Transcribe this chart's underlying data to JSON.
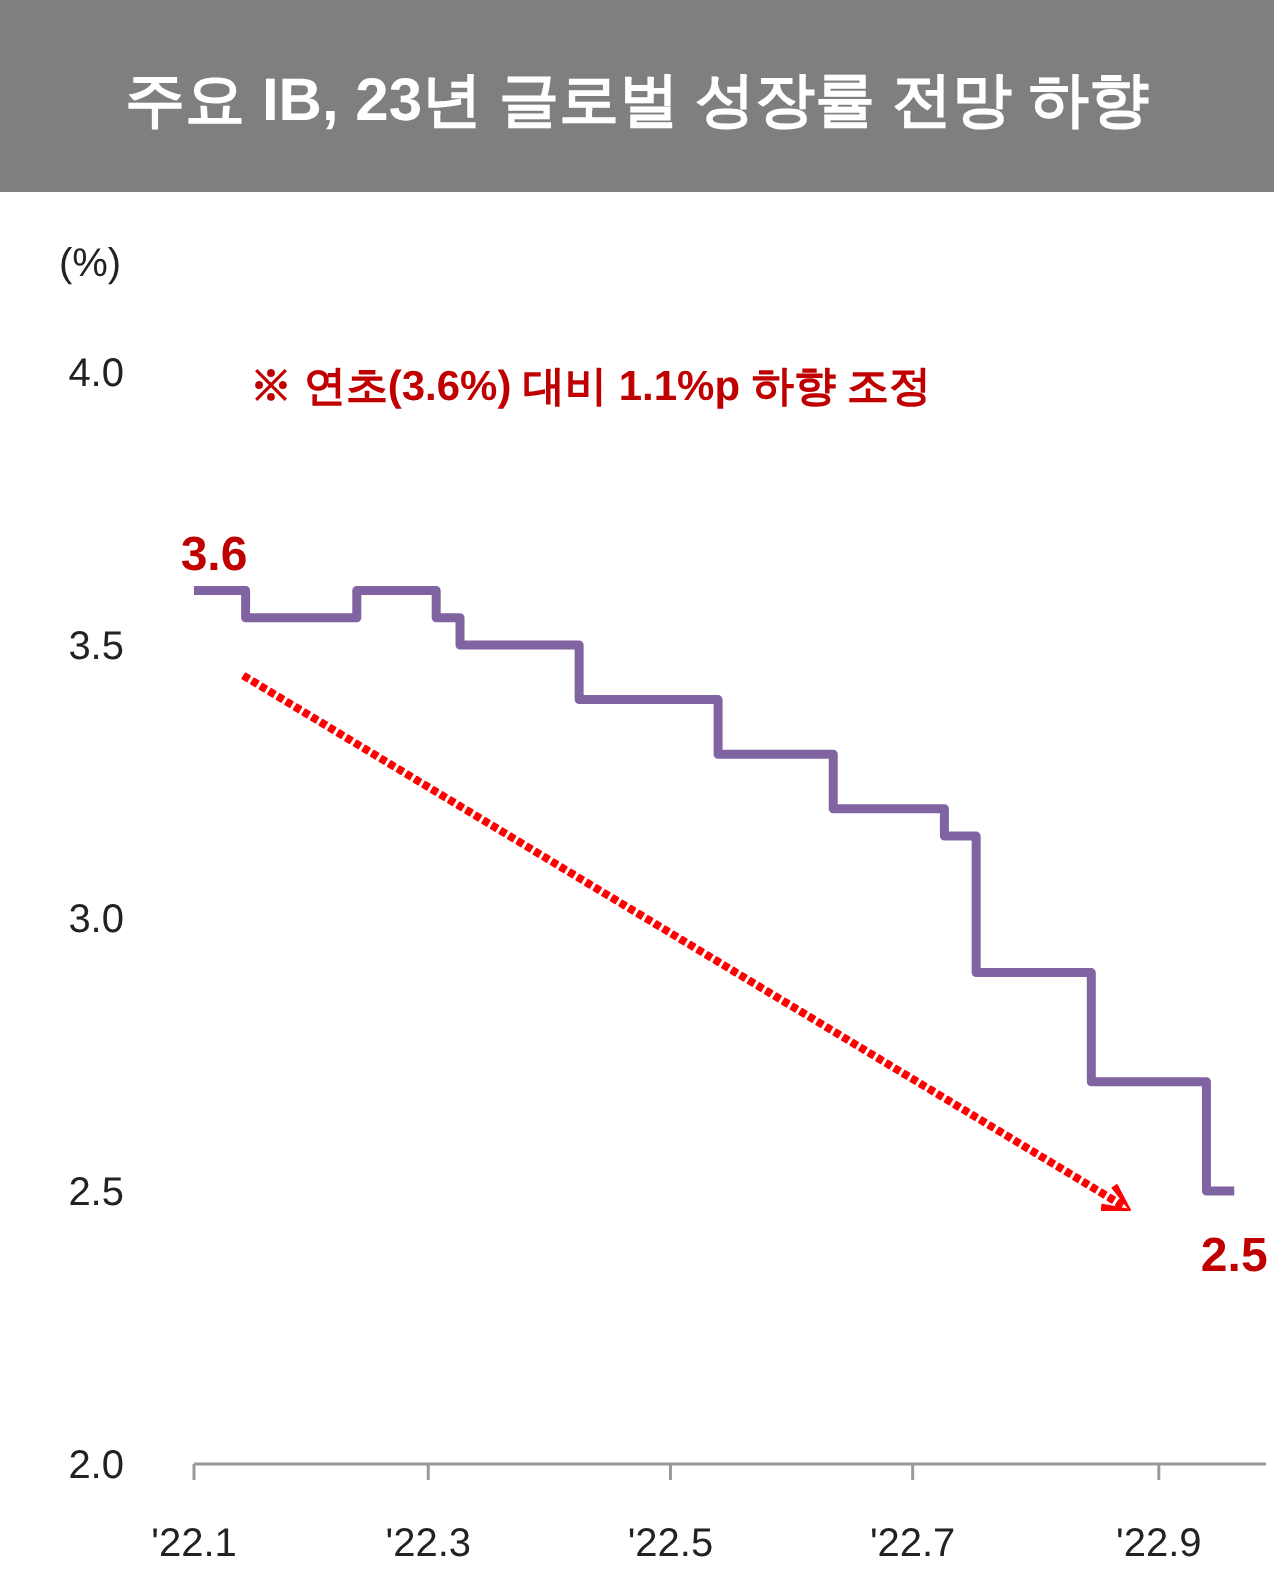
{
  "chart_data": {
    "type": "step",
    "title": "주요 IB, 23년 글로벌 성장률 전망 하향",
    "ylabel": "(%)",
    "annotations": [
      "※ 연초(3.6%) 대비 1.1%p 하향 조정"
    ],
    "xlim": [
      "2022-01-01",
      "2022-09-28"
    ],
    "xticks": [
      {
        "value": "2022-01-01",
        "label": "'22.1"
      },
      {
        "value": "2022-03-01",
        "label": "'22.3"
      },
      {
        "value": "2022-05-01",
        "label": "'22.5"
      },
      {
        "value": "2022-07-01",
        "label": "'22.7"
      },
      {
        "value": "2022-09-01",
        "label": "'22.9"
      }
    ],
    "ylim": [
      2,
      4
    ],
    "yticks": [
      {
        "value": 2,
        "label": "2.0"
      },
      {
        "value": 2.5,
        "label": "2.5"
      },
      {
        "value": 3,
        "label": "3.0"
      },
      {
        "value": 3.5,
        "label": "3.5"
      },
      {
        "value": 4,
        "label": "4.0"
      }
    ],
    "series": [
      {
        "color": "#8064a2",
        "x": [
          "2022-01-01",
          "2022-01-14",
          "2022-02-11",
          "2022-03-03",
          "2022-03-09",
          "2022-04-08",
          "2022-05-13",
          "2022-06-11",
          "2022-07-09",
          "2022-07-17",
          "2022-08-15",
          "2022-09-13",
          "2022-09-20"
        ],
        "values": [
          3.6,
          3.55,
          3.6,
          3.55,
          3.5,
          3.4,
          3.3,
          3.2,
          3.15,
          2.9,
          2.7,
          2.5,
          2.5
        ],
        "value_labels": [
          "3.6",
          null,
          null,
          null,
          null,
          null,
          null,
          null,
          null,
          null,
          null,
          null,
          "2.5"
        ]
      }
    ]
  }
}
